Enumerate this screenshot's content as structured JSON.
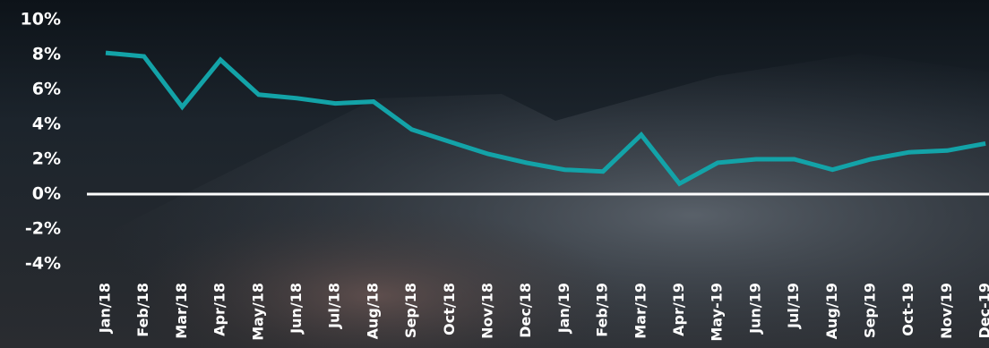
{
  "chart_data": {
    "type": "line",
    "categories": [
      "Jan/18",
      "Feb/18",
      "Mar/18",
      "Apr/18",
      "May/18",
      "Jun/18",
      "Jul/18",
      "Aug/18",
      "Sep/18",
      "Oct/18",
      "Nov/18",
      "Dec/18",
      "Jan/19",
      "Feb/19",
      "Mar/19",
      "Apr/19",
      "May-19",
      "Jun/19",
      "Jul/19",
      "Aug/19",
      "Sep/19",
      "Oct-19",
      "Nov/19",
      "Dec-19"
    ],
    "series": [
      {
        "color": "#13a3a8",
        "values": [
          8.1,
          7.9,
          5.0,
          7.7,
          5.7,
          5.5,
          5.2,
          5.3,
          3.7,
          3.0,
          2.3,
          1.8,
          1.4,
          1.3,
          3.4,
          0.6,
          1.8,
          2.0,
          2.0,
          1.4,
          2.0,
          2.4,
          2.5,
          2.9
        ]
      }
    ],
    "ylim": [
      -4,
      10
    ],
    "yticks": [
      {
        "value": 10,
        "label": "10%"
      },
      {
        "value": 8,
        "label": "8%"
      },
      {
        "value": 6,
        "label": "6%"
      },
      {
        "value": 4,
        "label": "4%"
      },
      {
        "value": 2,
        "label": "2%"
      },
      {
        "value": 0,
        "label": "0%"
      },
      {
        "value": -2,
        "label": "-2%"
      },
      {
        "value": -4,
        "label": "-4%"
      }
    ]
  }
}
